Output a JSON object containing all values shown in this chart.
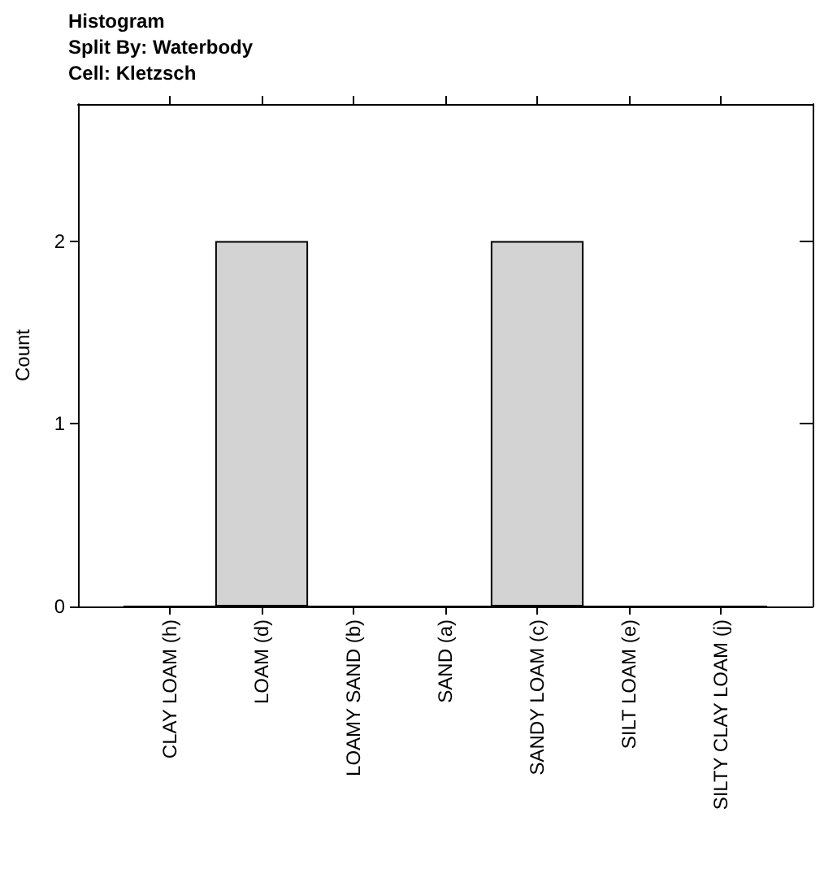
{
  "chart_data": {
    "type": "bar",
    "title": "Histogram",
    "subtitle": "Split By: Waterbody\nCell: Kletzsch",
    "ylabel": "Count",
    "categories": [
      "CLAY LOAM (h)",
      "LOAM (d)",
      "LOAMY SAND (b)",
      "SAND (a)",
      "SANDY LOAM (c)",
      "SILT LOAM (e)",
      "SILTY CLAY LOAM (j)"
    ],
    "values": [
      0,
      2,
      0,
      0,
      2,
      0,
      0
    ],
    "color": "#d3d3d3",
    "ylim": [
      0,
      2.75
    ],
    "yticks": [
      0,
      1,
      2
    ],
    "grid": false
  }
}
